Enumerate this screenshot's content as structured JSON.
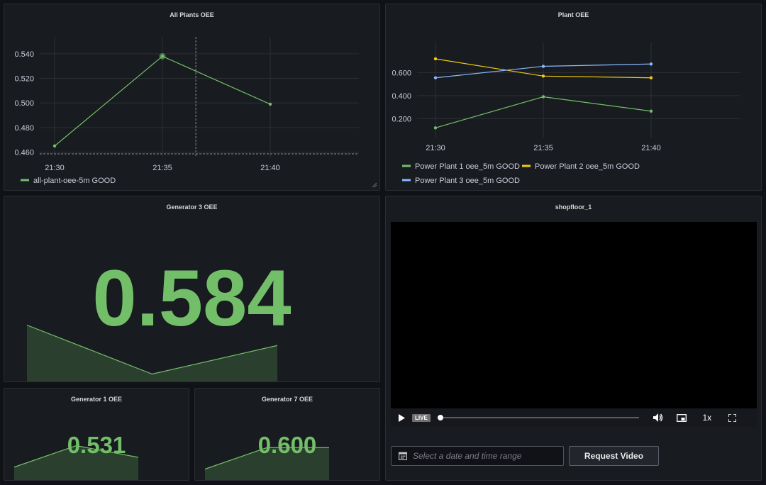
{
  "panels": {
    "all_plants": {
      "title": "All Plants OEE",
      "legend": "all-plant-oee-5m GOOD"
    },
    "plant_oee": {
      "title": "Plant OEE",
      "legend": [
        "Power Plant 1 oee_5m GOOD",
        "Power Plant 2 oee_5m GOOD",
        "Power Plant 3 oee_5m GOOD"
      ]
    },
    "gen3": {
      "title": "Generator 3 OEE",
      "value": "0.584"
    },
    "gen1": {
      "title": "Generator 1 OEE",
      "value": "0.531"
    },
    "gen7": {
      "title": "Generator 7 OEE",
      "value": "0.600"
    },
    "shopfloor": {
      "title": "shopfloor_1",
      "live_label": "LIVE",
      "speed_label": "1x",
      "date_placeholder": "Select a date and time range",
      "request_button": "Request Video"
    }
  },
  "colors": {
    "green": "#73bf69",
    "yellow": "#f2cc0c",
    "blue": "#8ab8ff"
  },
  "chart_data": [
    {
      "type": "line",
      "title": "All Plants OEE",
      "x": [
        "21:30",
        "21:35",
        "21:40"
      ],
      "series": [
        {
          "name": "all-plant-oee-5m GOOD",
          "values": [
            0.465,
            0.538,
            0.499
          ],
          "color": "#73bf69"
        }
      ],
      "ylim": [
        0.458,
        0.548
      ],
      "yticks": [
        "0.540",
        "0.520",
        "0.500",
        "0.480",
        "0.460"
      ],
      "ytick_values": [
        0.54,
        0.52,
        0.5,
        0.48,
        0.46
      ],
      "grid": true,
      "legend": "bottom-left"
    },
    {
      "type": "line",
      "title": "Plant OEE",
      "x": [
        "21:30",
        "21:35",
        "21:40"
      ],
      "series": [
        {
          "name": "Power Plant 1 oee_5m GOOD",
          "values": [
            0.12,
            0.39,
            0.265
          ],
          "color": "#73bf69"
        },
        {
          "name": "Power Plant 2 oee_5m GOOD",
          "values": [
            0.72,
            0.57,
            0.555
          ],
          "color": "#f2cc0c"
        },
        {
          "name": "Power Plant 3 oee_5m GOOD",
          "values": [
            0.555,
            0.655,
            0.675
          ],
          "color": "#8ab8ff"
        }
      ],
      "ylim": [
        0.06,
        0.8
      ],
      "yticks": [
        "0.600",
        "0.400",
        "0.200"
      ],
      "ytick_values": [
        0.6,
        0.4,
        0.2
      ],
      "grid": true,
      "legend": "bottom-left"
    },
    {
      "type": "area",
      "title": "Generator 3 OEE",
      "values": [
        0.7,
        0.1,
        0.45
      ]
    },
    {
      "type": "area",
      "title": "Generator 1 OEE",
      "values": [
        0.35,
        0.9,
        0.6
      ]
    },
    {
      "type": "area",
      "title": "Generator 7 OEE",
      "values": [
        0.3,
        0.85,
        0.85
      ]
    }
  ]
}
